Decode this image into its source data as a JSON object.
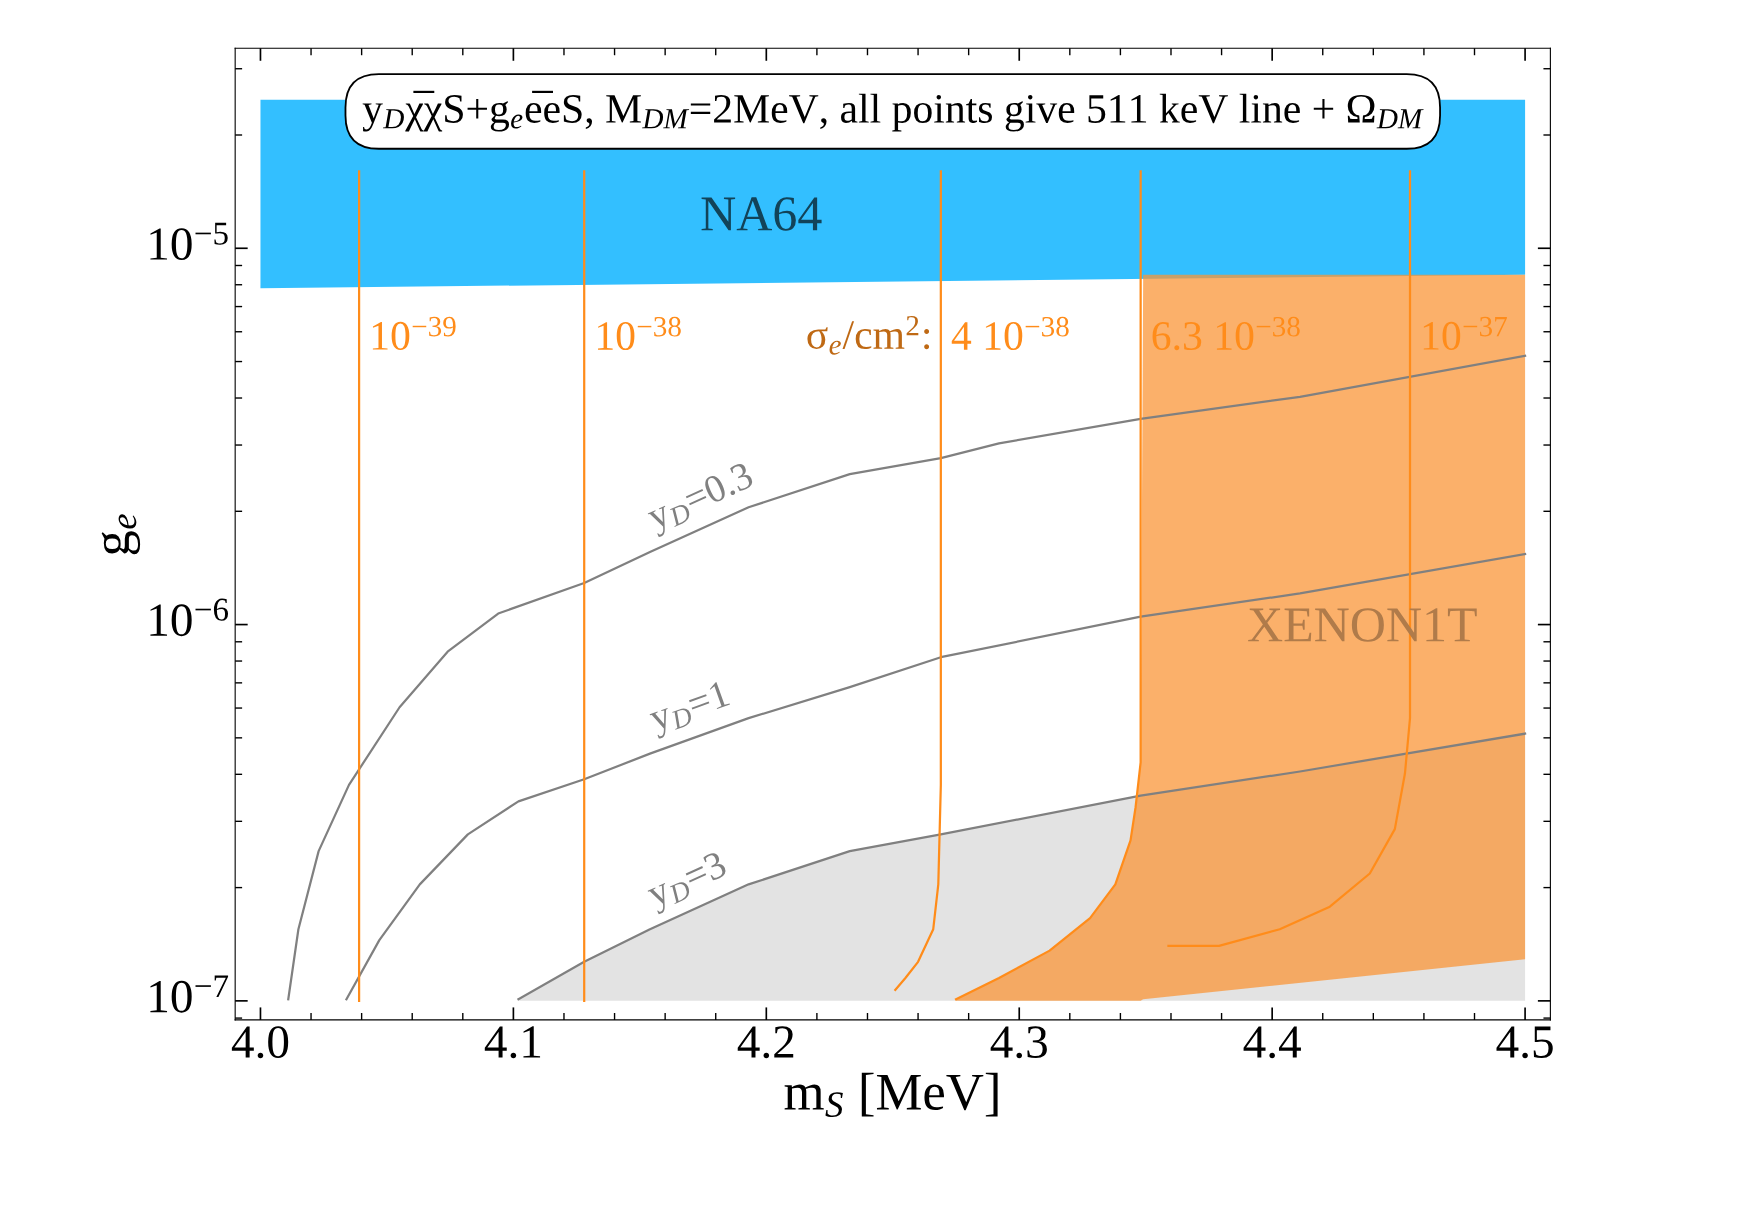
{
  "chart_data": {
    "type": "line",
    "title": "y$_{D}$χ̅χS+g$_{e}$e̅eS, M$_{DM}$=2MeV, all points give 511 keV line + Ω$_{DM}$",
    "xlabel": "m$_{S}$ [MeV]",
    "ylabel": "g$_{e}$",
    "log": "y",
    "grid": false,
    "legend": false,
    "xlim": [
      3.99,
      4.51
    ],
    "ylim": [
      8.9e-08,
      3.4e-05
    ],
    "xticks": [
      {
        "value": 4.0,
        "label": "4.0"
      },
      4.1,
      4.2,
      4.3,
      4.4,
      4.5
    ],
    "yticks": [
      {
        "value": 1e-07,
        "label": "10$^{−7}$"
      },
      {
        "value": 1e-06,
        "label": "10$^{−6}$"
      },
      {
        "value": 1e-05,
        "label": "10$^{−5}$"
      }
    ],
    "annotations": [
      {
        "text": "σ$_{e}$/cm$^{2}$:",
        "x": 4.269,
        "y": 5.77e-06
      },
      "NA64",
      "XENON1T"
    ],
    "series": [
      {
        "type": "area",
        "color": "#33bfff",
        "x": [
          4.0,
          4.5
        ],
        "values": [
          null,
          null
        ],
        "upper": [
          2.48e-05,
          2.48e-05
        ],
        "lower": [
          7.83e-06,
          8.5e-06
        ]
      },
      {
        "type": "area",
        "color": "#e3e3e3",
        "x": [
          4.102,
          4.128,
          4.154,
          4.193,
          4.233,
          4.269,
          4.348,
          4.411,
          4.5
        ],
        "values": [
          null,
          null,
          null,
          null,
          null,
          null,
          null,
          null,
          null
        ],
        "upper": [
          1.01e-07,
          1.27e-07,
          1.55e-07,
          2.04e-07,
          2.5e-07,
          2.77e-07,
          3.51e-07,
          4.07e-07,
          5.13e-07
        ],
        "lower": [
          1e-07,
          1e-07,
          1e-07,
          1e-07,
          1e-07,
          1e-07,
          1e-07,
          1e-07,
          1e-07
        ]
      },
      {
        "type": "area",
        "color": "#fbb06a",
        "x": [
          4.275,
          4.292,
          4.312,
          4.328,
          4.338,
          4.344,
          4.346,
          4.348,
          4.349,
          4.5
        ],
        "values": [
          null,
          null,
          null,
          null,
          null,
          null,
          null,
          null,
          null,
          null
        ],
        "upper": [
          1.01e-07,
          1.15e-07,
          1.36e-07,
          1.66e-07,
          2.04e-07,
          2.67e-07,
          3.27e-07,
          4.3e-07,
          8.5e-06,
          8.5e-06
        ],
        "lower": [
          1e-07,
          1e-07,
          1e-07,
          1e-07,
          1e-07,
          1e-07,
          1e-07,
          1e-07,
          1.01e-07,
          1.29e-07
        ]
      },
      {
        "name": "y$_{D}$=0.3",
        "color": "#808080",
        "x": [
          4.011,
          4.015,
          4.023,
          4.035,
          4.055,
          4.074,
          4.094,
          4.128,
          4.154,
          4.193,
          4.233,
          4.269,
          4.292,
          4.348,
          4.411,
          4.5
        ],
        "values": [
          1.01e-07,
          1.55e-07,
          2.5e-07,
          3.75e-07,
          6.03e-07,
          8.47e-07,
          1.07e-06,
          1.29e-06,
          1.56e-06,
          2.05e-06,
          2.51e-06,
          2.77e-06,
          3.03e-06,
          3.52e-06,
          4.03e-06,
          5.18e-06
        ]
      },
      {
        "name": "y$_{D}$=1",
        "color": "#808080",
        "x": [
          4.034,
          4.047,
          4.063,
          4.082,
          4.102,
          4.128,
          4.154,
          4.193,
          4.233,
          4.269,
          4.348,
          4.411,
          4.5
        ],
        "values": [
          1.01e-07,
          1.45e-07,
          2.04e-07,
          2.77e-07,
          3.39e-07,
          3.88e-07,
          4.54e-07,
          5.64e-07,
          6.82e-07,
          8.19e-07,
          1.05e-06,
          1.21e-06,
          1.54e-06
        ]
      },
      {
        "name": "y$_{D}$=3",
        "color": "#808080",
        "x": [
          4.102,
          4.128,
          4.154,
          4.193,
          4.233,
          4.269,
          4.348,
          4.411,
          4.5
        ],
        "values": [
          1.01e-07,
          1.27e-07,
          1.55e-07,
          2.04e-07,
          2.5e-07,
          2.77e-07,
          3.51e-07,
          4.07e-07,
          5.13e-07
        ]
      },
      {
        "name": "10$^{−39}$",
        "color": "#ff8c1a",
        "x": [
          4.039,
          4.039
        ],
        "values": [
          1.6e-05,
          1e-07
        ]
      },
      {
        "name": "10$^{−38}$",
        "color": "#ff8c1a",
        "x": [
          4.128,
          4.128
        ],
        "values": [
          1.6e-05,
          1e-07
        ]
      },
      {
        "name": "4 10$^{−38}$",
        "color": "#ff8c1a",
        "x": [
          4.269,
          4.269,
          4.268,
          4.266,
          4.26,
          4.255,
          4.251
        ],
        "values": [
          1.6e-05,
          3.75e-07,
          2.04e-07,
          1.55e-07,
          1.27e-07,
          1.15e-07,
          1.07e-07
        ]
      },
      {
        "name": "6.3 10$^{−38}$",
        "color": "#ff8c1a",
        "x": [
          4.348,
          4.348,
          4.348,
          4.346,
          4.344,
          4.338,
          4.328,
          4.312,
          4.292,
          4.275
        ],
        "values": [
          1.6e-05,
          7.4e-07,
          4.3e-07,
          3.27e-07,
          2.67e-07,
          2.04e-07,
          1.66e-07,
          1.36e-07,
          1.15e-07,
          1.01e-07
        ]
      },
      {
        "name": "10$^{−37}$",
        "color": "#ff8c1a",
        "x": [
          4.4545,
          4.4545,
          4.4525,
          4.4485,
          4.4386,
          4.4228,
          4.403,
          4.379,
          4.359
        ],
        "values": [
          1.6e-05,
          5.64e-07,
          4.02e-07,
          2.86e-07,
          2.18e-07,
          1.78e-07,
          1.55e-07,
          1.4e-07,
          1.4e-07
        ]
      }
    ]
  }
}
